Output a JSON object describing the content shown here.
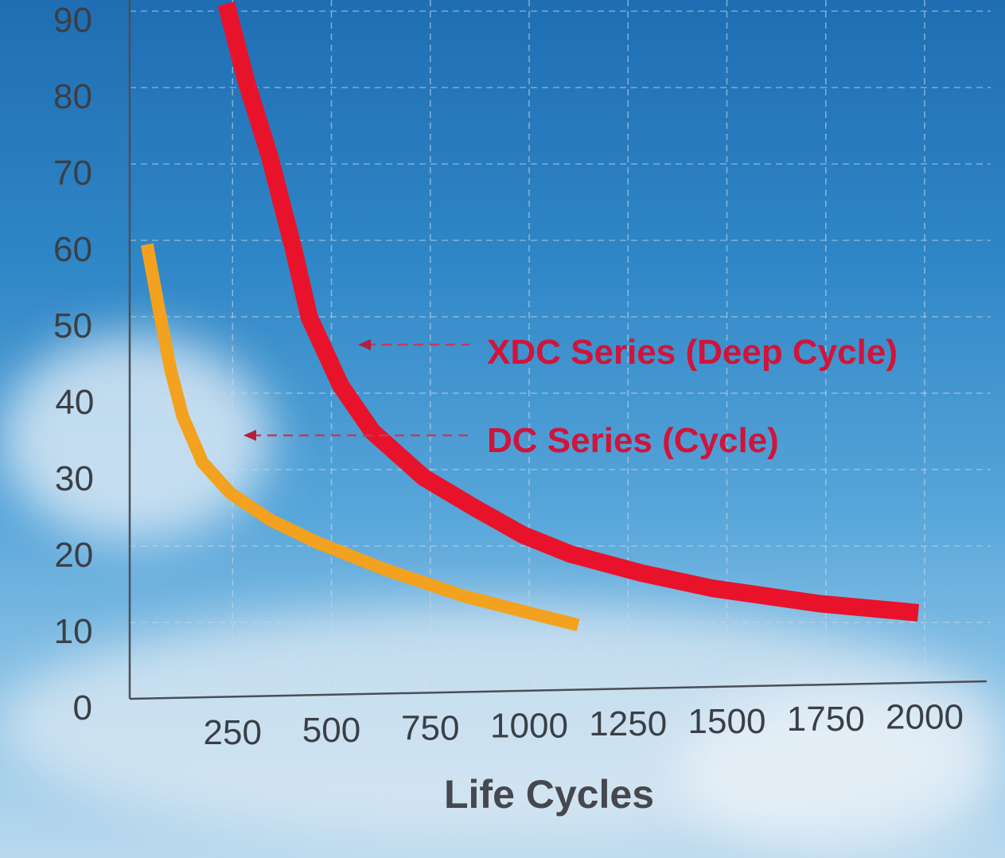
{
  "chart_data": {
    "type": "line",
    "title": "",
    "xlabel": "Life Cycles",
    "ylabel": "",
    "xlim": [
      0,
      2200
    ],
    "ylim": [
      0,
      90
    ],
    "x_ticks": [
      "250",
      "500",
      "750",
      "1000",
      "1250",
      "1500",
      "1750",
      "2000"
    ],
    "y_ticks": [
      "0",
      "10",
      "20",
      "30",
      "40",
      "50",
      "60",
      "70",
      "80",
      "90"
    ],
    "grid": true,
    "series": [
      {
        "name": "XDC Series (Deep Cycle)",
        "color": "#e8132b",
        "x": [
          250,
          300,
          360,
          420,
          460,
          540,
          620,
          750,
          880,
          1000,
          1120,
          1300,
          1480,
          1750,
          2000
        ],
        "y": [
          92,
          82,
          72,
          60,
          51,
          42,
          36,
          30,
          26,
          22.5,
          20,
          17.5,
          15.5,
          13.5,
          12.3
        ]
      },
      {
        "name": "DC Series (Cycle)",
        "color": "#f2a21e",
        "x": [
          50,
          80,
          110,
          140,
          190,
          260,
          360,
          480,
          650,
          850,
          1000,
          1140
        ],
        "y": [
          60.5,
          52,
          44,
          38,
          32,
          28,
          24.5,
          21.5,
          18,
          14.5,
          12.5,
          10.7
        ]
      }
    ],
    "annotations": [
      {
        "text": "XDC Series (Deep Cycle)",
        "series": 0
      },
      {
        "text": "DC Series (Cycle)",
        "series": 1
      }
    ]
  }
}
